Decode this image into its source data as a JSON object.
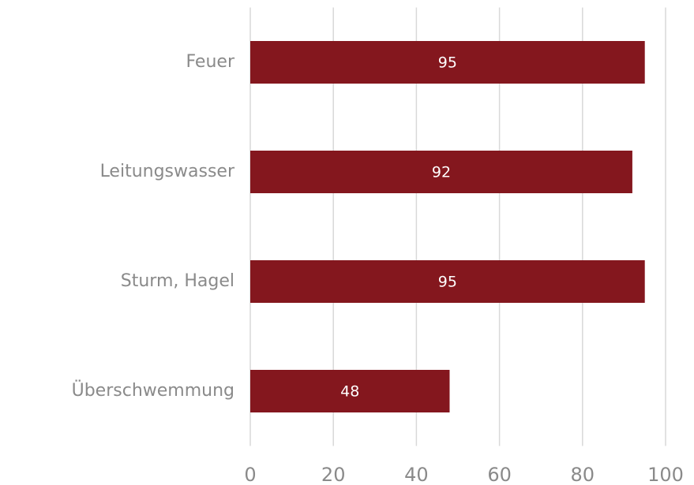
{
  "chart_data": {
    "type": "bar",
    "orientation": "horizontal",
    "categories": [
      "Feuer",
      "Leitungswasser",
      "Sturm, Hagel",
      "Überschwemmung"
    ],
    "values": [
      95,
      92,
      95,
      48
    ],
    "color": "#84171e",
    "xlim": [
      0,
      100
    ],
    "xticks": [
      0,
      20,
      40,
      60,
      80,
      100
    ],
    "grid": true
  }
}
